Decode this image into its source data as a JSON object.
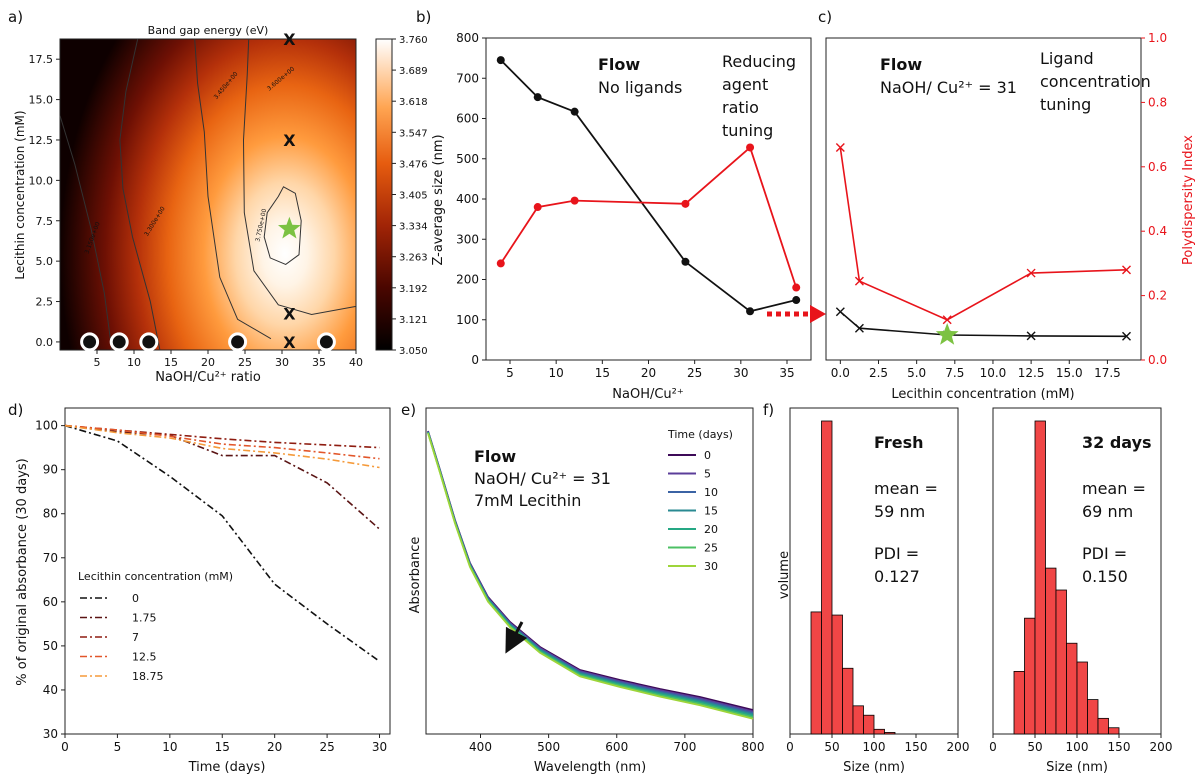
{
  "colors": {
    "black_series": "#111111",
    "red_series": "#e8141b",
    "red_axis": "#e8141b",
    "star": "#7cc242",
    "hist_fill": "#f04646",
    "hist_edge": "#000000",
    "colorbar_low": "#000000",
    "colorbar_high": "#ffffff",
    "stability_series": [
      "#111111",
      "#5a1414",
      "#8e1c10",
      "#e2562a",
      "#f59a3a"
    ],
    "uv_series": [
      "#3d0a58",
      "#5b3d9a",
      "#3b63a4",
      "#2a8a92",
      "#25a884",
      "#4cc064",
      "#9ed53a"
    ]
  },
  "chart_data": [
    {
      "panel": "a)",
      "type": "heatmap",
      "title": "Band gap energy (eV)",
      "xlabel": "NaOH/Cu²⁺ ratio",
      "ylabel": "Lecithin concentration (mM)",
      "xlim": [
        0,
        40
      ],
      "ylim": [
        -0.5,
        18.75
      ],
      "xticks": [
        "5",
        "10",
        "15",
        "20",
        "25",
        "30",
        "35",
        "40"
      ],
      "yticks": [
        "0.0",
        "2.5",
        "5.0",
        "7.5",
        "10.0",
        "12.5",
        "15.0",
        "17.5"
      ],
      "colorbar": {
        "min": 3.05,
        "max": 3.76,
        "ticks": [
          "3.050",
          "3.121",
          "3.192",
          "3.263",
          "3.334",
          "3.405",
          "3.476",
          "3.547",
          "3.618",
          "3.689",
          "3.760"
        ]
      },
      "contour_labels": [
        "3.750e+00",
        "3.600e+00",
        "3.450e+00",
        "3.300e+00",
        "3.150e+00"
      ],
      "maximum": {
        "x": 31,
        "y": 7
      },
      "x_markers": [
        {
          "x": 31,
          "y": 18.75
        },
        {
          "x": 31,
          "y": 12.5
        },
        {
          "x": 31,
          "y": 1.75
        },
        {
          "x": 31,
          "y": 0
        }
      ],
      "sample_dots": [
        {
          "x": 4,
          "y": 0
        },
        {
          "x": 8,
          "y": 0
        },
        {
          "x": 12,
          "y": 0
        },
        {
          "x": 24,
          "y": 0
        },
        {
          "x": 36,
          "y": 0
        }
      ],
      "marker_text": "X"
    },
    {
      "panel": "b)",
      "type": "line",
      "xlabel": "NaOH/Cu²⁺",
      "ylabel": "Z-average size (nm)",
      "xlim": [
        2.4,
        37.6
      ],
      "ylim": [
        0,
        800
      ],
      "xticks": [
        "5",
        "10",
        "15",
        "20",
        "25",
        "30",
        "35"
      ],
      "yticks": [
        "0",
        "100",
        "200",
        "300",
        "400",
        "500",
        "600",
        "700",
        "800"
      ],
      "x": [
        4,
        8,
        12,
        24,
        31,
        36
      ],
      "series": [
        {
          "name": "",
          "axis": "left",
          "values": [
            745,
            653,
            617,
            244,
            121,
            149
          ]
        },
        {
          "name": "",
          "axis": "right",
          "values": [
            0.3,
            0.475,
            0.495,
            0.485,
            0.66,
            0.225
          ]
        }
      ],
      "annotations": [
        "Flow",
        "No ligands",
        "Reducing",
        "agent",
        "ratio",
        "tuning"
      ]
    },
    {
      "panel": "c)",
      "type": "line",
      "xlabel": "Lecithin concentration (mM)",
      "ylabel_right": "Polydispersity Index",
      "xlim": [
        -0.94,
        19.7
      ],
      "ylim": [
        0,
        800
      ],
      "ylim_right": [
        0,
        1.0
      ],
      "xticks": [
        "0.0",
        "2.5",
        "5.0",
        "7.5",
        "10.0",
        "12.5",
        "15.0",
        "17.5"
      ],
      "yticks_right": [
        "0.0",
        "0.2",
        "0.4",
        "0.6",
        "0.8",
        "1.0"
      ],
      "x": [
        0,
        1.25,
        7,
        12.5,
        18.75
      ],
      "series": [
        {
          "name": "",
          "axis": "left",
          "values": [
            120,
            79,
            62,
            60,
            59
          ]
        },
        {
          "name": "",
          "axis": "right",
          "values": [
            0.66,
            0.245,
            0.125,
            0.27,
            0.28
          ]
        }
      ],
      "annotations": [
        "Flow",
        "NaOH/ Cu²⁺ = 31",
        "Ligand",
        "concentration",
        "tuning"
      ]
    },
    {
      "panel": "d)",
      "type": "line",
      "xlabel": "Time (days)",
      "ylabel": "% of original absorbance (30 days)",
      "xlim": [
        0,
        31
      ],
      "ylim": [
        30,
        104
      ],
      "xticks": [
        "0",
        "5",
        "10",
        "15",
        "20",
        "25",
        "30"
      ],
      "yticks": [
        "30",
        "40",
        "50",
        "60",
        "70",
        "80",
        "90",
        "100"
      ],
      "x": [
        0,
        5,
        10,
        15,
        20,
        25,
        30
      ],
      "legend_title": "Lecithin concentration (mM)",
      "series": [
        {
          "name": "0",
          "values": [
            100,
            96.5,
            88.5,
            79.5,
            64,
            55,
            46.5
          ]
        },
        {
          "name": "1.75",
          "values": [
            100,
            98.6,
            97.8,
            93.2,
            93.2,
            87,
            76.5
          ]
        },
        {
          "name": "7",
          "values": [
            100,
            99,
            98,
            97,
            96.2,
            95.6,
            95
          ]
        },
        {
          "name": "12.5",
          "values": [
            100,
            99,
            97.6,
            95.8,
            95,
            93.8,
            92.5
          ]
        },
        {
          "name": "18.75",
          "values": [
            100,
            98.4,
            97.2,
            94.8,
            93.8,
            92.4,
            90.5
          ]
        }
      ]
    },
    {
      "panel": "e)",
      "type": "line",
      "xlabel": "Wavelength (nm)",
      "ylabel": "Absorbance",
      "xlim": [
        320,
        800
      ],
      "xticks": [
        "400",
        "500",
        "600",
        "700",
        "800"
      ],
      "legend_title": "Time (days)",
      "series_names": [
        "0",
        "5",
        "10",
        "15",
        "20",
        "25",
        "30"
      ],
      "annotations": [
        "Flow",
        "NaOH/ Cu²⁺ = 31",
        "7mM Lecithin"
      ]
    },
    {
      "panel": "f)",
      "type": "bar",
      "xlabel": "Size (nm)",
      "ylabel": "volume",
      "xlim": [
        0,
        200
      ],
      "xticks": [
        "0",
        "50",
        "100",
        "150",
        "200"
      ],
      "histograms": [
        {
          "label": "Fresh",
          "mean_label": "mean =",
          "mean_value": "59 nm",
          "pdi_label": "PDI =",
          "pdi_value": "0.127",
          "bin_width": 12.5,
          "bins_start": [
            25,
            37.5,
            50,
            62.5,
            75,
            87.5,
            100,
            112.5
          ],
          "values": [
            0.39,
            1.0,
            0.38,
            0.21,
            0.09,
            0.06,
            0.015,
            0.005
          ]
        },
        {
          "label": "32 days",
          "mean_label": "mean =",
          "mean_value": "69 nm",
          "pdi_label": "PDI =",
          "pdi_value": "0.150",
          "bin_width": 12.5,
          "bins_start": [
            25,
            37.5,
            50,
            62.5,
            75,
            87.5,
            100,
            112.5,
            125,
            137.5
          ],
          "values": [
            0.2,
            0.37,
            1.0,
            0.53,
            0.46,
            0.29,
            0.23,
            0.11,
            0.05,
            0.02
          ]
        }
      ]
    }
  ]
}
